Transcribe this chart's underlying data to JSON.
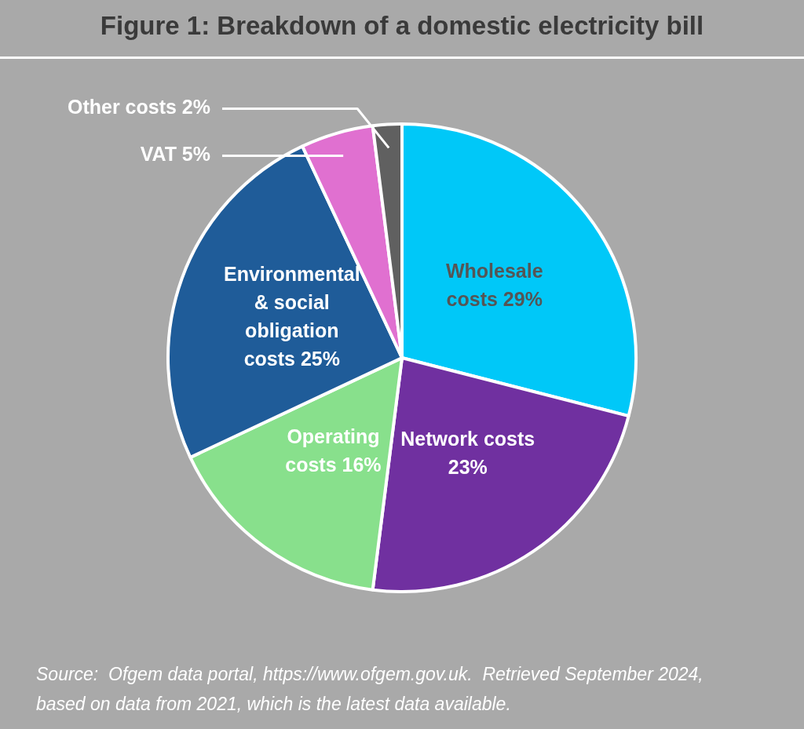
{
  "chart_data": {
    "type": "pie",
    "title": "Figure 1: Breakdown of a domestic electricity bill",
    "categories": [
      "Wholesale costs",
      "Network costs",
      "Operating costs",
      "Environmental & social obligation costs",
      "VAT",
      "Other costs"
    ],
    "values": [
      29,
      23,
      16,
      25,
      5,
      2
    ],
    "value_labels": [
      "29%",
      "23%",
      "16%",
      "25%",
      "5%",
      "2%"
    ],
    "colors": [
      "#00c8f8",
      "#7030a0",
      "#88e08c",
      "#1f5c99",
      "#e070d0",
      "#606060"
    ],
    "legend": false,
    "annotations": [
      "Source:  Ofgem data portal, https://www.ofgem.gov.uk.  Retrieved September 2024, based on data from 2021, which is the latest data available."
    ]
  }
}
